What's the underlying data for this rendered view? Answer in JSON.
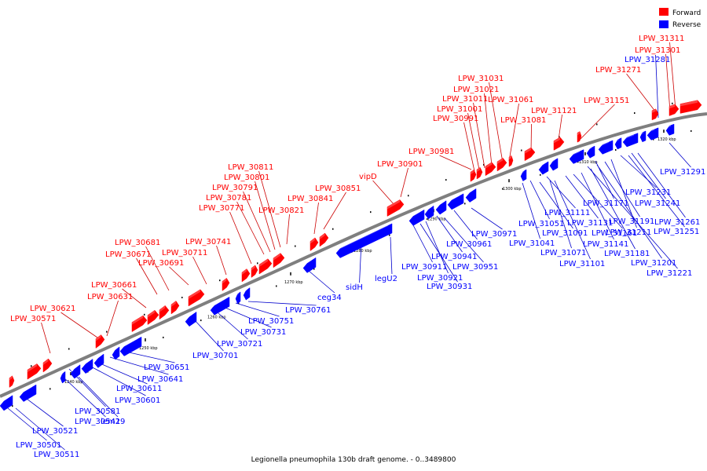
{
  "title": "Legionella pneumophila 130b draft genome. - 0..3489800",
  "legend": [
    {
      "label": "Forward",
      "color": "#ff0000"
    },
    {
      "label": "Reverse",
      "color": "#0000ff"
    }
  ],
  "colors": {
    "forward": "#ff0000",
    "reverse": "#0000ff",
    "backbone": "#7f7f7f",
    "fwd_line": "#cc0000",
    "rev_line": "#0000cc"
  },
  "ticks": [
    "1240 kbp",
    "1250 kbp",
    "1260 kbp",
    "1270 kbp",
    "1280 kbp",
    "1290 kbp",
    "1300 kbp",
    "1310 kbp",
    "1320 kbp"
  ],
  "forward_labels": [
    "LPW_31311",
    "LPW_31301",
    "LPW_31271",
    "LPW_31151",
    "LPW_31121",
    "LPW_31081",
    "LPW_31061",
    "LPW_31031",
    "LPW_31021",
    "LPW_31011",
    "LPW_31001",
    "LPW_30991",
    "LPW_30981",
    "LPW_30901",
    "vipD",
    "LPW_30851",
    "LPW_30841",
    "LPW_30821",
    "LPW_30811",
    "LPW_30801",
    "LPW_30791",
    "LPW_30781",
    "LPW_30771",
    "LPW_30741",
    "LPW_30711",
    "LPW_30691",
    "LPW_30681",
    "LPW_30671",
    "LPW_30661",
    "LPW_30631",
    "LPW_30621",
    "LPW_30571"
  ],
  "reverse_labels": [
    "LPW_31281",
    "LPW_31291",
    "LPW_31231",
    "LPW_31241",
    "LPW_31261",
    "LPW_31251",
    "LPW_31171",
    "LPW_31191",
    "LPW_31211",
    "LPW_31201",
    "LPW_31221",
    "LPW_31111",
    "LPW_31131",
    "LPW_31161",
    "LPW_31141",
    "LPW_31181",
    "LPW_31051",
    "LPW_31091",
    "LPW_31041",
    "LPW_31071",
    "LPW_31101",
    "LPW_30971",
    "LPW_30961",
    "LPW_30941",
    "LPW_30951",
    "LPW_30911",
    "LPW_30921",
    "LPW_30931",
    "legU2",
    "sidH",
    "ceg34",
    "LPW_30761",
    "LPW_30751",
    "LPW_30731",
    "LPW_30721",
    "LPW_30701",
    "LPW_30651",
    "LPW_30641",
    "LPW_30611",
    "LPW_30601",
    "LPW_30581",
    "LPW_30541",
    "lem29",
    "LPW_30521",
    "LPW_30501",
    "LPW_30511"
  ]
}
